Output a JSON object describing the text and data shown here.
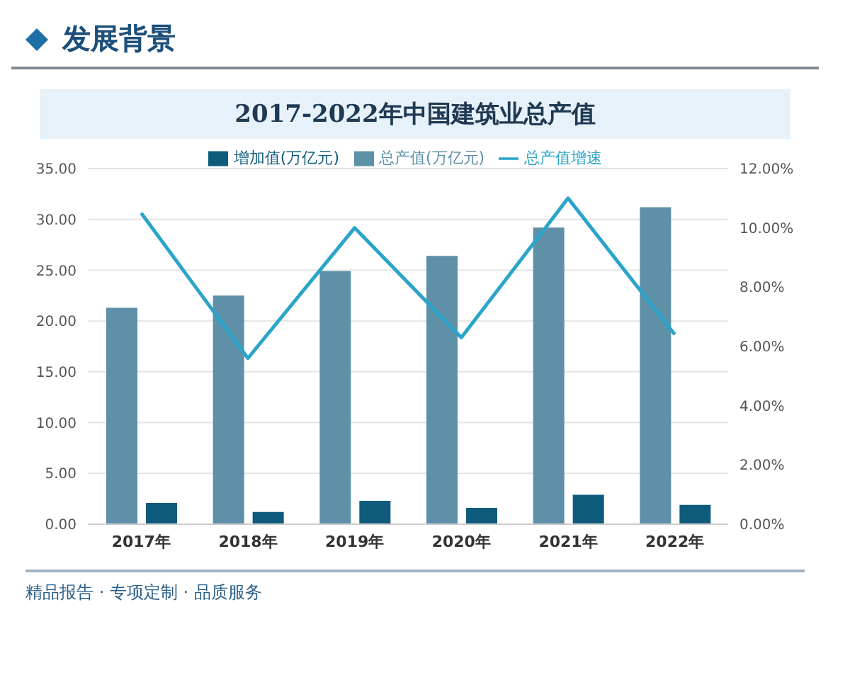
{
  "chart_data": {
    "type": "bar",
    "title": "2017-2022年中国建筑业总产值",
    "annotations": [
      "发展背景",
      "精品报告 · 专项定制 · 品质服务"
    ],
    "categories": [
      "2017年",
      "2018年",
      "2019年",
      "2020年",
      "2021年",
      "2022年"
    ],
    "series": [
      {
        "name": "总产值(万亿元)",
        "color": "#5e90a8",
        "values": [
          21.3,
          22.5,
          24.9,
          26.4,
          29.2,
          31.2
        ]
      },
      {
        "name": "增加值(万亿元)",
        "color": "#0f5b7c",
        "values": [
          2.1,
          1.2,
          2.3,
          1.6,
          2.9,
          1.9
        ]
      },
      {
        "name": "总产值增速",
        "type": "line",
        "axis": "y2",
        "color": "#2ba4c9",
        "values": [
          10.5,
          5.6,
          10.0,
          6.3,
          11.0,
          6.4
        ]
      }
    ],
    "ylim": [
      0,
      35
    ],
    "yticks": [
      {
        "value": 0,
        "label": "0.00"
      },
      {
        "value": 5,
        "label": "5.00"
      },
      {
        "value": 10,
        "label": "10.00"
      },
      {
        "value": 15,
        "label": "15.00"
      },
      {
        "value": 20,
        "label": "20.00"
      },
      {
        "value": 25,
        "label": "25.00"
      },
      {
        "value": 30,
        "label": "30.00"
      },
      {
        "value": 35,
        "label": "35.00"
      }
    ],
    "y2lim": [
      0,
      12
    ],
    "y2ticks": [
      {
        "value": 0,
        "label": "0.00%"
      },
      {
        "value": 2,
        "label": "2.00%"
      },
      {
        "value": 4,
        "label": "4.00%"
      },
      {
        "value": 6,
        "label": "6.00%"
      },
      {
        "value": 8,
        "label": "8.00%"
      },
      {
        "value": 10,
        "label": "10.00%"
      },
      {
        "value": 12,
        "label": "12.00%"
      }
    ],
    "grid": "y",
    "legend": "top",
    "marker": "none",
    "line_style": "solid"
  }
}
